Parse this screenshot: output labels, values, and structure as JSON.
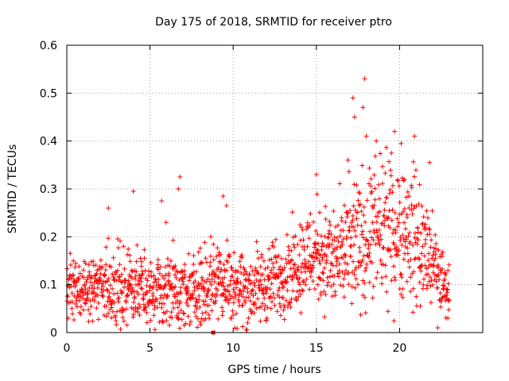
{
  "chart_data": {
    "type": "scatter",
    "title": "Day 175 of 2018, SRMTID for receiver ptro",
    "xlabel": "GPS time / hours",
    "ylabel": "SRMTID / TECUs",
    "xlim": [
      0,
      25
    ],
    "ylim": [
      0,
      0.6
    ],
    "x_ticks": [
      0,
      5,
      10,
      15,
      20
    ],
    "x_tick_labels": [
      "0",
      "5",
      "10",
      "15",
      "20"
    ],
    "y_ticks": [
      0,
      0.1,
      0.2,
      0.3,
      0.4,
      0.5,
      0.6
    ],
    "y_tick_labels": [
      "0",
      "0.1",
      "0.2",
      "0.3",
      "0.4",
      "0.5",
      "0.6"
    ],
    "grid": true,
    "marker": "+",
    "color": "#ff0000",
    "envelope": {
      "description": "approximate band of the dense point cloud, hours -> TECU",
      "x": [
        0,
        1,
        2,
        3,
        4,
        5,
        6,
        7,
        8,
        9,
        10,
        11,
        12,
        13,
        14,
        15,
        16,
        17,
        18,
        19,
        20,
        21,
        22,
        23
      ],
      "center": [
        0.09,
        0.09,
        0.1,
        0.09,
        0.1,
        0.08,
        0.1,
        0.08,
        0.09,
        0.12,
        0.1,
        0.09,
        0.1,
        0.12,
        0.15,
        0.17,
        0.15,
        0.17,
        0.2,
        0.21,
        0.22,
        0.2,
        0.14,
        0.08
      ],
      "spread": [
        0.05,
        0.05,
        0.06,
        0.06,
        0.06,
        0.05,
        0.07,
        0.06,
        0.06,
        0.07,
        0.06,
        0.06,
        0.06,
        0.06,
        0.07,
        0.08,
        0.08,
        0.1,
        0.11,
        0.11,
        0.11,
        0.11,
        0.07,
        0.04
      ]
    },
    "outliers": [
      {
        "x": 2.5,
        "y": 0.26
      },
      {
        "x": 4.0,
        "y": 0.295
      },
      {
        "x": 5.7,
        "y": 0.275
      },
      {
        "x": 6.8,
        "y": 0.325
      },
      {
        "x": 6.7,
        "y": 0.3
      },
      {
        "x": 9.4,
        "y": 0.285
      },
      {
        "x": 9.6,
        "y": 0.265
      },
      {
        "x": 15.0,
        "y": 0.33
      },
      {
        "x": 16.9,
        "y": 0.36
      },
      {
        "x": 17.2,
        "y": 0.49
      },
      {
        "x": 17.3,
        "y": 0.45
      },
      {
        "x": 17.8,
        "y": 0.47
      },
      {
        "x": 17.9,
        "y": 0.53
      },
      {
        "x": 18.0,
        "y": 0.41
      },
      {
        "x": 18.6,
        "y": 0.4
      },
      {
        "x": 19.7,
        "y": 0.42
      },
      {
        "x": 20.1,
        "y": 0.395
      },
      {
        "x": 20.9,
        "y": 0.41
      },
      {
        "x": 21.8,
        "y": 0.355
      },
      {
        "x": 22.3,
        "y": 0.01
      },
      {
        "x": 22.9,
        "y": 0.03
      }
    ],
    "boxed_point": {
      "x": 8.8,
      "y": 0.0
    }
  }
}
